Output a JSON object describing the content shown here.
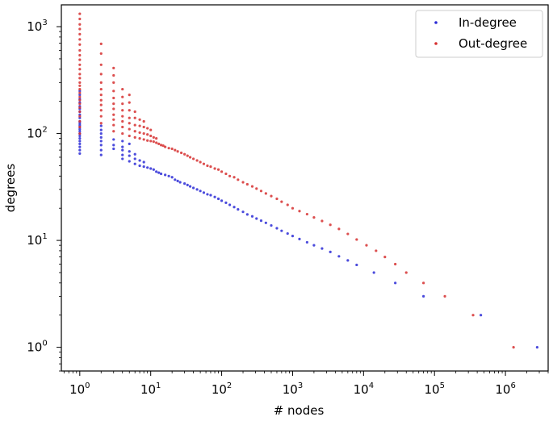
{
  "chart_data": {
    "type": "scatter",
    "title": "",
    "xlabel": "# nodes",
    "ylabel": "degrees",
    "xscale": "log",
    "yscale": "log",
    "xlim": [
      0.55,
      4000000
    ],
    "ylim": [
      0.6,
      1600
    ],
    "x_ticks": [
      {
        "value": 1,
        "base": "10",
        "exp": "0"
      },
      {
        "value": 10,
        "base": "10",
        "exp": "1"
      },
      {
        "value": 100,
        "base": "10",
        "exp": "2"
      },
      {
        "value": 1000,
        "base": "10",
        "exp": "3"
      },
      {
        "value": 10000,
        "base": "10",
        "exp": "4"
      },
      {
        "value": 100000,
        "base": "10",
        "exp": "5"
      },
      {
        "value": 1000000,
        "base": "10",
        "exp": "6"
      }
    ],
    "y_ticks": [
      {
        "value": 1,
        "base": "10",
        "exp": "0"
      },
      {
        "value": 10,
        "base": "10",
        "exp": "1"
      },
      {
        "value": 100,
        "base": "10",
        "exp": "2"
      },
      {
        "value": 1000,
        "base": "10",
        "exp": "3"
      }
    ],
    "grid": false,
    "legend": "top-right",
    "series": [
      {
        "name": "In-degree",
        "color": "#2b2bd6",
        "points": [
          [
            1,
            65
          ],
          [
            1,
            70
          ],
          [
            1,
            75
          ],
          [
            1,
            80
          ],
          [
            1,
            85
          ],
          [
            1,
            90
          ],
          [
            1,
            95
          ],
          [
            1,
            100
          ],
          [
            1,
            105
          ],
          [
            1,
            110
          ],
          [
            1,
            115
          ],
          [
            1,
            120
          ],
          [
            1,
            125
          ],
          [
            1,
            130
          ],
          [
            1,
            140
          ],
          [
            1,
            150
          ],
          [
            1,
            160
          ],
          [
            1,
            170
          ],
          [
            1,
            180
          ],
          [
            1,
            195
          ],
          [
            1,
            210
          ],
          [
            1,
            230
          ],
          [
            1,
            250
          ],
          [
            2,
            63
          ],
          [
            2,
            70
          ],
          [
            2,
            78
          ],
          [
            2,
            85
          ],
          [
            2,
            92
          ],
          [
            2,
            100
          ],
          [
            2,
            108
          ],
          [
            2,
            118
          ],
          [
            3,
            72
          ],
          [
            3,
            78
          ],
          [
            3,
            88
          ],
          [
            4,
            58
          ],
          [
            4,
            63
          ],
          [
            4,
            70
          ],
          [
            4,
            75
          ],
          [
            4,
            85
          ],
          [
            5,
            55
          ],
          [
            5,
            62
          ],
          [
            5,
            68
          ],
          [
            5,
            80
          ],
          [
            6,
            52
          ],
          [
            6,
            58
          ],
          [
            6,
            64
          ],
          [
            7,
            50
          ],
          [
            7,
            56
          ],
          [
            8,
            49
          ],
          [
            8,
            54
          ],
          [
            9,
            48
          ],
          [
            10,
            47
          ],
          [
            11,
            46
          ],
          [
            12,
            44
          ],
          [
            13,
            43
          ],
          [
            14,
            42
          ],
          [
            16,
            41
          ],
          [
            18,
            40
          ],
          [
            20,
            39
          ],
          [
            22,
            37
          ],
          [
            24,
            36
          ],
          [
            26,
            35
          ],
          [
            30,
            34
          ],
          [
            33,
            33
          ],
          [
            36,
            32
          ],
          [
            40,
            31
          ],
          [
            45,
            30
          ],
          [
            50,
            29
          ],
          [
            56,
            28
          ],
          [
            63,
            27
          ],
          [
            70,
            26.5
          ],
          [
            80,
            25.5
          ],
          [
            90,
            24.5
          ],
          [
            100,
            23.5
          ],
          [
            115,
            22.5
          ],
          [
            130,
            21.5
          ],
          [
            150,
            20.5
          ],
          [
            170,
            19.5
          ],
          [
            200,
            18.5
          ],
          [
            230,
            17.5
          ],
          [
            270,
            16.8
          ],
          [
            310,
            16
          ],
          [
            360,
            15.3
          ],
          [
            420,
            14.6
          ],
          [
            500,
            13.8
          ],
          [
            600,
            13
          ],
          [
            700,
            12.3
          ],
          [
            850,
            11.6
          ],
          [
            1000,
            11
          ],
          [
            1250,
            10.3
          ],
          [
            1600,
            9.6
          ],
          [
            2000,
            9
          ],
          [
            2600,
            8.4
          ],
          [
            3400,
            7.8
          ],
          [
            4500,
            7.1
          ],
          [
            6000,
            6.5
          ],
          [
            8000,
            5.9
          ],
          [
            14000,
            5
          ],
          [
            28000,
            4
          ],
          [
            70000,
            3
          ],
          [
            450000,
            2
          ],
          [
            2800000,
            1
          ]
        ]
      },
      {
        "name": "Out-degree",
        "color": "#d63030",
        "points": [
          [
            1,
            100
          ],
          [
            1,
            115
          ],
          [
            1,
            130
          ],
          [
            1,
            145
          ],
          [
            1,
            160
          ],
          [
            1,
            175
          ],
          [
            1,
            190
          ],
          [
            1,
            205
          ],
          [
            1,
            220
          ],
          [
            1,
            240
          ],
          [
            1,
            260
          ],
          [
            1,
            280
          ],
          [
            1,
            300
          ],
          [
            1,
            330
          ],
          [
            1,
            360
          ],
          [
            1,
            400
          ],
          [
            1,
            440
          ],
          [
            1,
            490
          ],
          [
            1,
            540
          ],
          [
            1,
            600
          ],
          [
            1,
            680
          ],
          [
            1,
            760
          ],
          [
            1,
            850
          ],
          [
            1,
            950
          ],
          [
            1,
            1050
          ],
          [
            1,
            1180
          ],
          [
            1,
            1320
          ],
          [
            2,
            125
          ],
          [
            2,
            145
          ],
          [
            2,
            165
          ],
          [
            2,
            185
          ],
          [
            2,
            205
          ],
          [
            2,
            230
          ],
          [
            2,
            260
          ],
          [
            2,
            300
          ],
          [
            2,
            360
          ],
          [
            2,
            440
          ],
          [
            2,
            560
          ],
          [
            2,
            690
          ],
          [
            3,
            105
          ],
          [
            3,
            120
          ],
          [
            3,
            135
          ],
          [
            3,
            150
          ],
          [
            3,
            170
          ],
          [
            3,
            190
          ],
          [
            3,
            215
          ],
          [
            3,
            250
          ],
          [
            3,
            300
          ],
          [
            3,
            350
          ],
          [
            3,
            410
          ],
          [
            4,
            100
          ],
          [
            4,
            115
          ],
          [
            4,
            130
          ],
          [
            4,
            145
          ],
          [
            4,
            165
          ],
          [
            4,
            190
          ],
          [
            4,
            220
          ],
          [
            4,
            260
          ],
          [
            5,
            95
          ],
          [
            5,
            110
          ],
          [
            5,
            125
          ],
          [
            5,
            140
          ],
          [
            5,
            165
          ],
          [
            5,
            195
          ],
          [
            5,
            230
          ],
          [
            6,
            92
          ],
          [
            6,
            105
          ],
          [
            6,
            120
          ],
          [
            6,
            140
          ],
          [
            6,
            160
          ],
          [
            7,
            90
          ],
          [
            7,
            102
          ],
          [
            7,
            118
          ],
          [
            7,
            135
          ],
          [
            8,
            88
          ],
          [
            8,
            100
          ],
          [
            8,
            115
          ],
          [
            8,
            130
          ],
          [
            9,
            86
          ],
          [
            9,
            98
          ],
          [
            9,
            112
          ],
          [
            10,
            85
          ],
          [
            10,
            95
          ],
          [
            10,
            108
          ],
          [
            11,
            84
          ],
          [
            11,
            92
          ],
          [
            12,
            82
          ],
          [
            12,
            90
          ],
          [
            13,
            80
          ],
          [
            14,
            78
          ],
          [
            15,
            77
          ],
          [
            16,
            75
          ],
          [
            18,
            73
          ],
          [
            20,
            72
          ],
          [
            22,
            70
          ],
          [
            24,
            68
          ],
          [
            27,
            66
          ],
          [
            30,
            64
          ],
          [
            33,
            62
          ],
          [
            36,
            60
          ],
          [
            40,
            58
          ],
          [
            45,
            56
          ],
          [
            50,
            54
          ],
          [
            56,
            52
          ],
          [
            63,
            50
          ],
          [
            70,
            49
          ],
          [
            80,
            47
          ],
          [
            90,
            46
          ],
          [
            100,
            44
          ],
          [
            115,
            42
          ],
          [
            130,
            40
          ],
          [
            150,
            39
          ],
          [
            170,
            37
          ],
          [
            200,
            35
          ],
          [
            230,
            33.5
          ],
          [
            270,
            32
          ],
          [
            310,
            30.5
          ],
          [
            360,
            29
          ],
          [
            420,
            27.5
          ],
          [
            500,
            26
          ],
          [
            600,
            24.5
          ],
          [
            700,
            23
          ],
          [
            850,
            21.5
          ],
          [
            1000,
            20
          ],
          [
            1250,
            18.8
          ],
          [
            1600,
            17.6
          ],
          [
            2000,
            16.4
          ],
          [
            2600,
            15.2
          ],
          [
            3400,
            14
          ],
          [
            4500,
            12.8
          ],
          [
            6000,
            11.5
          ],
          [
            8000,
            10.2
          ],
          [
            11000,
            9
          ],
          [
            15000,
            8
          ],
          [
            20000,
            7
          ],
          [
            28000,
            6
          ],
          [
            40000,
            5
          ],
          [
            70000,
            4
          ],
          [
            140000,
            3
          ],
          [
            350000,
            2
          ],
          [
            1300000,
            1
          ]
        ]
      }
    ]
  }
}
